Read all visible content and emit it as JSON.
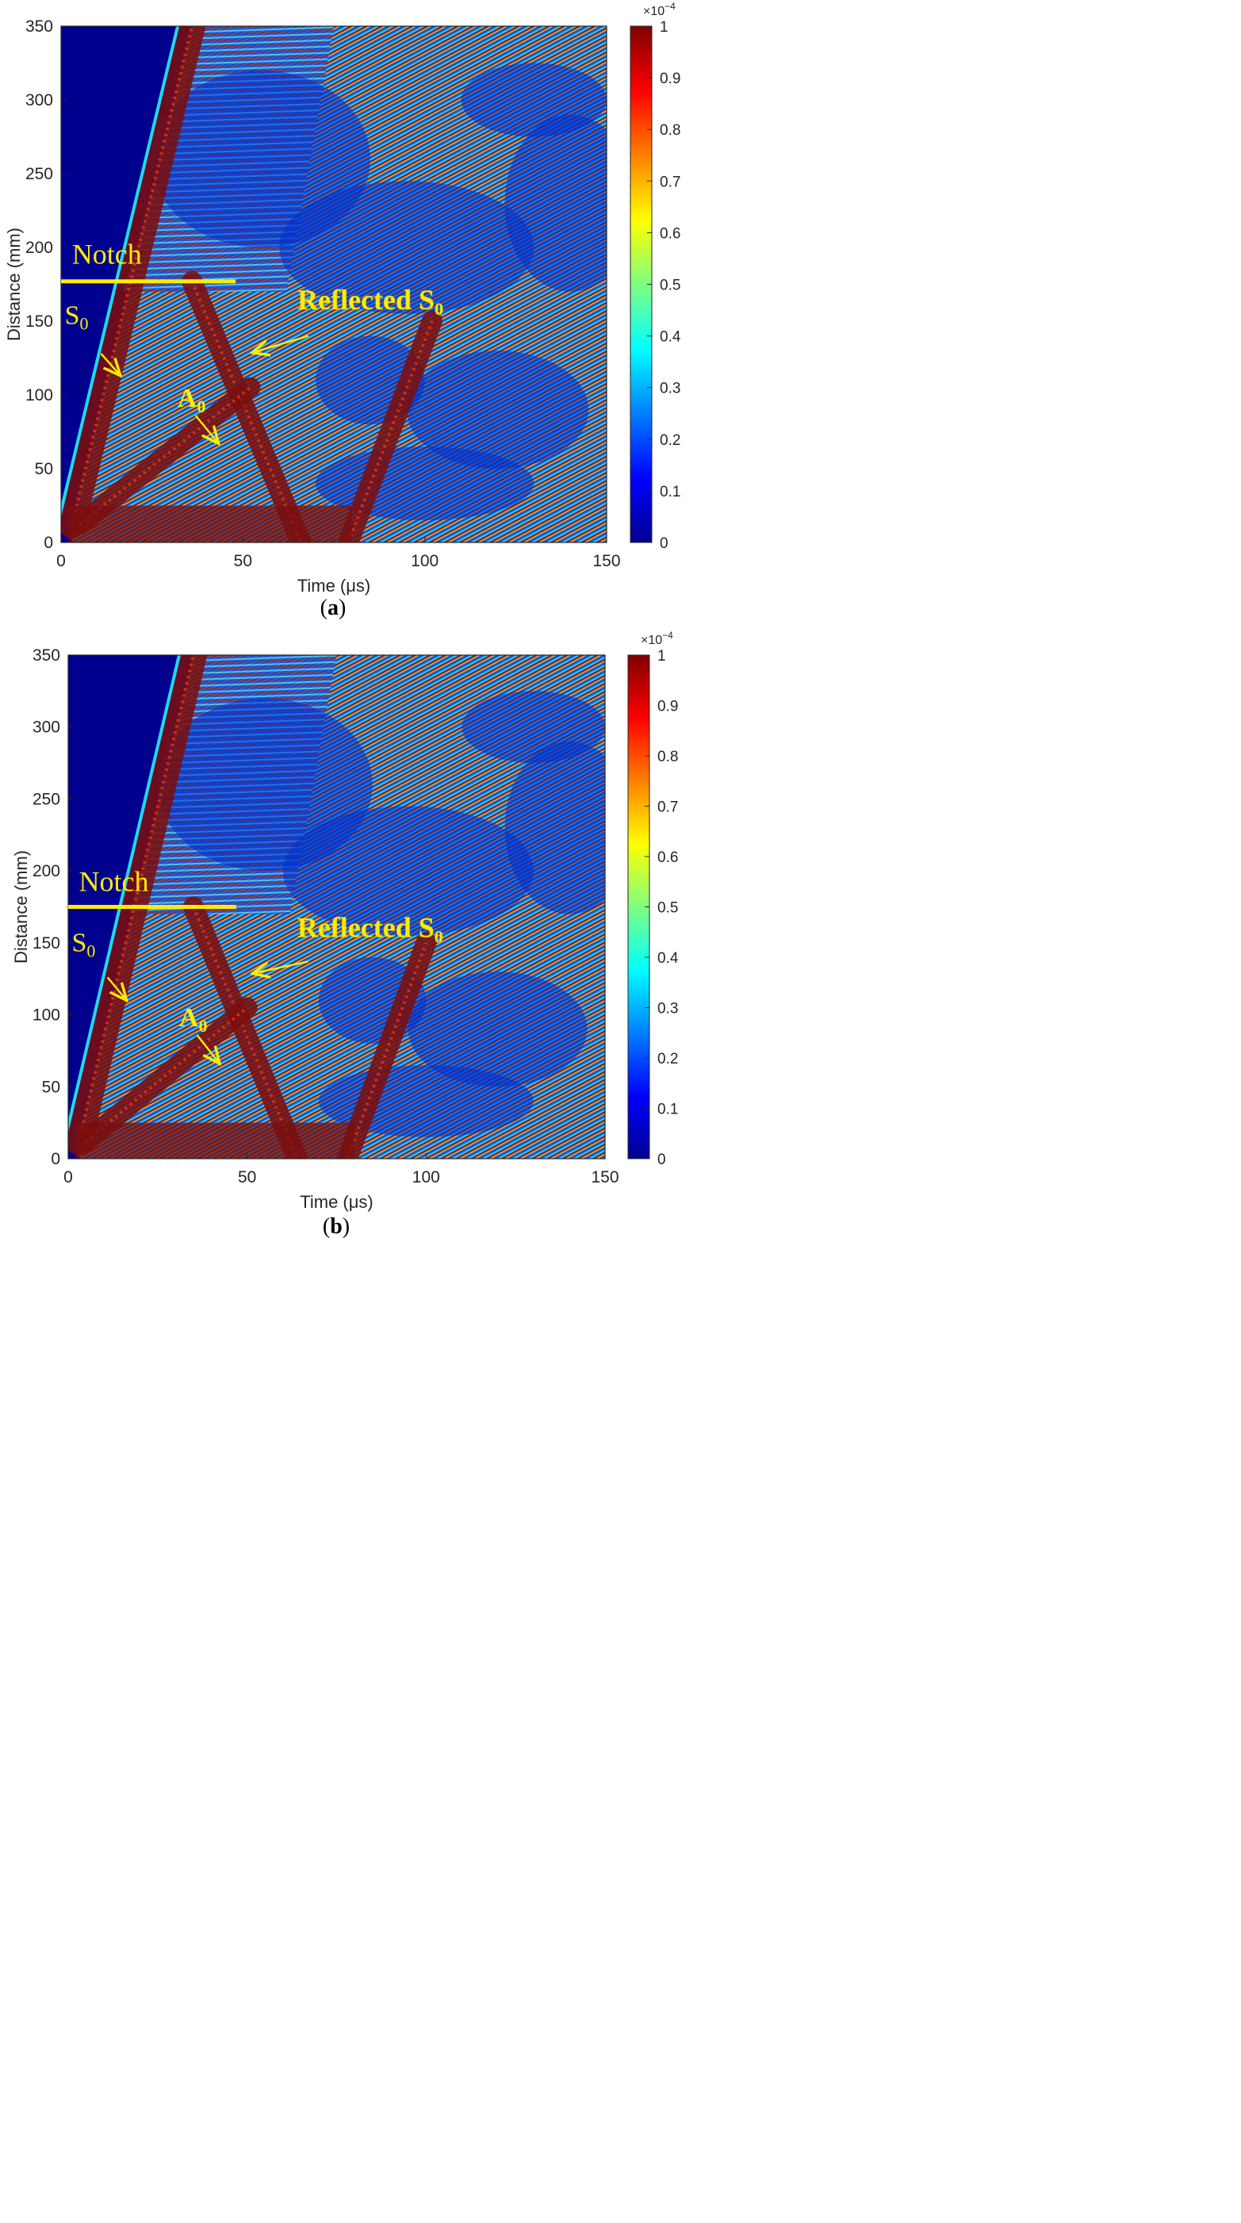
{
  "chart_data": [
    {
      "type": "heatmap",
      "panel_label": "a",
      "xlabel": "Time (μs)",
      "ylabel": "Distance (mm)",
      "xlim": [
        0,
        150
      ],
      "ylim": [
        0,
        350
      ],
      "xticks": [
        0,
        50,
        100,
        150
      ],
      "yticks": [
        0,
        50,
        100,
        150,
        200,
        250,
        300,
        350
      ],
      "colorbar": {
        "range": [
          0,
          1
        ],
        "ticks": [
          0,
          0.1,
          0.2,
          0.3,
          0.4,
          0.5,
          0.6,
          0.7,
          0.8,
          0.9,
          1
        ],
        "multiplier": "×10",
        "multiplier_exponent": "−4",
        "colormap": "jet"
      },
      "notch_line": {
        "y": 177,
        "x_start": 0,
        "x_end": 48
      },
      "annotations": [
        {
          "label": "Notch",
          "x": 3,
          "y": 189
        },
        {
          "label": "S",
          "sub": "0",
          "x": 1,
          "y": 148
        },
        {
          "label": "Reflected S",
          "sub": "0",
          "x": 65,
          "y": 158
        },
        {
          "label": "A",
          "sub": "0",
          "x": 32,
          "y": 92
        }
      ],
      "arrows": [
        {
          "from": [
            11,
            128
          ],
          "to": [
            16,
            114
          ]
        },
        {
          "from": [
            68,
            140
          ],
          "to": [
            53,
            129
          ]
        },
        {
          "from": [
            37,
            86
          ],
          "to": [
            43,
            68
          ]
        }
      ],
      "wave_fronts": [
        {
          "name": "S0",
          "points": [
            [
              3,
              12
            ],
            [
              36,
              350
            ]
          ]
        },
        {
          "name": "Reflected S0",
          "points": [
            [
              36,
              177
            ],
            [
              66,
              0
            ]
          ]
        },
        {
          "name": "A0",
          "points": [
            [
              5,
              12
            ],
            [
              52,
              105
            ]
          ]
        },
        {
          "name": "S0 second reflection",
          "points": [
            [
              79,
              0
            ],
            [
              102,
              150
            ]
          ]
        }
      ]
    },
    {
      "type": "heatmap",
      "panel_label": "b",
      "xlabel": "Time (μs)",
      "ylabel": "Distance (mm)",
      "xlim": [
        0,
        150
      ],
      "ylim": [
        0,
        350
      ],
      "xticks": [
        0,
        50,
        100,
        150
      ],
      "yticks": [
        0,
        50,
        100,
        150,
        200,
        250,
        300,
        350
      ],
      "colorbar": {
        "range": [
          0,
          1
        ],
        "ticks": [
          0,
          0.1,
          0.2,
          0.3,
          0.4,
          0.5,
          0.6,
          0.7,
          0.8,
          0.9,
          1
        ],
        "multiplier": "×10",
        "multiplier_exponent": "−4",
        "colormap": "jet"
      },
      "notch_line": {
        "y": 175,
        "x_start": 0,
        "x_end": 47
      },
      "annotations": [
        {
          "label": "Notch",
          "x": 3,
          "y": 186
        },
        {
          "label": "S",
          "sub": "0",
          "x": 1,
          "y": 144
        },
        {
          "label": "Reflected S",
          "sub": "0",
          "x": 64,
          "y": 154
        },
        {
          "label": "A",
          "sub": "0",
          "x": 31,
          "y": 92
        }
      ],
      "arrows": [
        {
          "from": [
            11,
            126
          ],
          "to": [
            16,
            111
          ]
        },
        {
          "from": [
            67,
            137
          ],
          "to": [
            52,
            129
          ]
        },
        {
          "from": [
            36,
            86
          ],
          "to": [
            42,
            67
          ]
        }
      ],
      "wave_fronts": [
        {
          "name": "S0",
          "points": [
            [
              3,
              12
            ],
            [
              35,
              350
            ]
          ]
        },
        {
          "name": "Reflected S0",
          "points": [
            [
              35,
              175
            ],
            [
              64,
              0
            ]
          ]
        },
        {
          "name": "A0",
          "points": [
            [
              5,
              12
            ],
            [
              50,
              105
            ]
          ]
        },
        {
          "name": "S0 second reflection",
          "points": [
            [
              78,
              0
            ],
            [
              100,
              150
            ]
          ]
        }
      ]
    }
  ],
  "colors": {
    "annotation": "#ffec00",
    "background_low": "#00008f",
    "axis": "#262626"
  }
}
